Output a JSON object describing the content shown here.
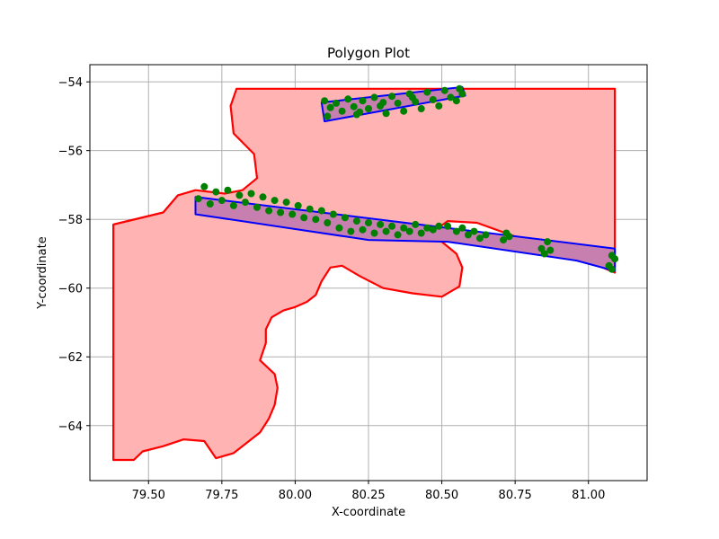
{
  "chart_data": {
    "type": "scatter",
    "title": "Polygon Plot",
    "xlabel": "X-coordinate",
    "ylabel": "Y-coordinate",
    "xlim": [
      79.3,
      81.2
    ],
    "ylim": [
      -65.6,
      -53.5
    ],
    "x_ticks": [
      79.5,
      79.75,
      80.0,
      80.25,
      80.5,
      80.75,
      81.0
    ],
    "x_tick_labels": [
      "79.50",
      "79.75",
      "80.00",
      "80.25",
      "80.50",
      "80.75",
      "81.00"
    ],
    "y_ticks": [
      -64,
      -62,
      -60,
      -58,
      -56,
      -54
    ],
    "y_tick_labels": [
      "−64",
      "−62",
      "−60",
      "−58",
      "−56",
      "−54"
    ],
    "grid": true,
    "colors": {
      "outer_edge": "#ff0000",
      "outer_fill": "#ffb3b3",
      "inner_edge": "#0000ff",
      "inner_fill": "#c77fb0",
      "points": "#008000"
    },
    "outer_polygon": [
      [
        79.8,
        -54.2
      ],
      [
        81.09,
        -54.2
      ],
      [
        81.09,
        -59.55
      ],
      [
        81.02,
        -59.3
      ],
      [
        80.9,
        -59.0
      ],
      [
        80.75,
        -58.5
      ],
      [
        80.62,
        -58.1
      ],
      [
        80.52,
        -58.05
      ],
      [
        80.48,
        -58.3
      ],
      [
        80.5,
        -58.65
      ],
      [
        80.55,
        -59.0
      ],
      [
        80.57,
        -59.4
      ],
      [
        80.56,
        -59.95
      ],
      [
        80.5,
        -60.25
      ],
      [
        80.4,
        -60.15
      ],
      [
        80.3,
        -60.0
      ],
      [
        80.22,
        -59.65
      ],
      [
        80.16,
        -59.35
      ],
      [
        80.12,
        -59.4
      ],
      [
        80.09,
        -59.8
      ],
      [
        80.07,
        -60.2
      ],
      [
        80.04,
        -60.4
      ],
      [
        80.0,
        -60.55
      ],
      [
        79.96,
        -60.65
      ],
      [
        79.92,
        -60.85
      ],
      [
        79.9,
        -61.2
      ],
      [
        79.9,
        -61.6
      ],
      [
        79.88,
        -62.1
      ],
      [
        79.93,
        -62.5
      ],
      [
        79.94,
        -62.9
      ],
      [
        79.93,
        -63.4
      ],
      [
        79.91,
        -63.8
      ],
      [
        79.88,
        -64.2
      ],
      [
        79.82,
        -64.6
      ],
      [
        79.79,
        -64.8
      ],
      [
        79.73,
        -64.95
      ],
      [
        79.69,
        -64.45
      ],
      [
        79.62,
        -64.4
      ],
      [
        79.55,
        -64.6
      ],
      [
        79.48,
        -64.75
      ],
      [
        79.45,
        -65.0
      ],
      [
        79.38,
        -65.0
      ],
      [
        79.38,
        -58.15
      ],
      [
        79.55,
        -57.8
      ],
      [
        79.6,
        -57.3
      ],
      [
        79.66,
        -57.15
      ],
      [
        79.76,
        -57.25
      ],
      [
        79.82,
        -57.15
      ],
      [
        79.87,
        -56.8
      ],
      [
        79.86,
        -56.1
      ],
      [
        79.79,
        -55.5
      ],
      [
        79.78,
        -54.7
      ]
    ],
    "inner_polygons": [
      [
        [
          80.09,
          -54.6
        ],
        [
          80.57,
          -54.15
        ],
        [
          80.58,
          -54.4
        ],
        [
          80.1,
          -55.15
        ]
      ],
      [
        [
          79.66,
          -57.35
        ],
        [
          81.09,
          -58.85
        ],
        [
          81.09,
          -59.5
        ],
        [
          80.96,
          -59.2
        ],
        [
          80.52,
          -58.65
        ],
        [
          80.25,
          -58.6
        ],
        [
          79.66,
          -57.85
        ]
      ]
    ],
    "points": [
      [
        80.1,
        -54.55
      ],
      [
        80.12,
        -54.75
      ],
      [
        80.11,
        -55.0
      ],
      [
        80.14,
        -54.62
      ],
      [
        80.16,
        -54.85
      ],
      [
        80.18,
        -54.5
      ],
      [
        80.2,
        -54.72
      ],
      [
        80.21,
        -54.95
      ],
      [
        80.23,
        -54.55
      ],
      [
        80.25,
        -54.78
      ],
      [
        80.27,
        -54.45
      ],
      [
        80.29,
        -54.7
      ],
      [
        80.31,
        -54.92
      ],
      [
        80.33,
        -54.42
      ],
      [
        80.35,
        -54.62
      ],
      [
        80.37,
        -54.85
      ],
      [
        80.39,
        -54.35
      ],
      [
        80.41,
        -54.58
      ],
      [
        80.43,
        -54.78
      ],
      [
        80.45,
        -54.3
      ],
      [
        80.47,
        -54.52
      ],
      [
        80.49,
        -54.7
      ],
      [
        80.51,
        -54.25
      ],
      [
        80.53,
        -54.45
      ],
      [
        80.55,
        -54.55
      ],
      [
        80.56,
        -54.2
      ],
      [
        80.57,
        -54.35
      ],
      [
        80.22,
        -54.88
      ],
      [
        80.3,
        -54.6
      ],
      [
        80.4,
        -54.45
      ],
      [
        79.67,
        -57.4
      ],
      [
        79.69,
        -57.05
      ],
      [
        79.71,
        -57.55
      ],
      [
        79.73,
        -57.2
      ],
      [
        79.75,
        -57.45
      ],
      [
        79.77,
        -57.15
      ],
      [
        79.79,
        -57.6
      ],
      [
        79.81,
        -57.3
      ],
      [
        79.83,
        -57.5
      ],
      [
        79.85,
        -57.25
      ],
      [
        79.87,
        -57.65
      ],
      [
        79.89,
        -57.35
      ],
      [
        79.91,
        -57.75
      ],
      [
        79.93,
        -57.45
      ],
      [
        79.95,
        -57.8
      ],
      [
        79.97,
        -57.5
      ],
      [
        79.99,
        -57.85
      ],
      [
        80.01,
        -57.6
      ],
      [
        80.03,
        -57.95
      ],
      [
        80.05,
        -57.7
      ],
      [
        80.07,
        -58.0
      ],
      [
        80.09,
        -57.75
      ],
      [
        80.11,
        -58.1
      ],
      [
        80.13,
        -57.85
      ],
      [
        80.15,
        -58.25
      ],
      [
        80.17,
        -57.95
      ],
      [
        80.19,
        -58.35
      ],
      [
        80.21,
        -58.05
      ],
      [
        80.23,
        -58.3
      ],
      [
        80.25,
        -58.1
      ],
      [
        80.27,
        -58.4
      ],
      [
        80.29,
        -58.15
      ],
      [
        80.31,
        -58.35
      ],
      [
        80.33,
        -58.2
      ],
      [
        80.35,
        -58.45
      ],
      [
        80.37,
        -58.25
      ],
      [
        80.39,
        -58.35
      ],
      [
        80.41,
        -58.15
      ],
      [
        80.43,
        -58.4
      ],
      [
        80.45,
        -58.25
      ],
      [
        80.47,
        -58.3
      ],
      [
        80.49,
        -58.2
      ],
      [
        80.52,
        -58.2
      ],
      [
        80.55,
        -58.35
      ],
      [
        80.57,
        -58.25
      ],
      [
        80.59,
        -58.45
      ],
      [
        80.61,
        -58.35
      ],
      [
        80.63,
        -58.55
      ],
      [
        80.65,
        -58.45
      ],
      [
        80.71,
        -58.6
      ],
      [
        80.72,
        -58.4
      ],
      [
        80.73,
        -58.5
      ],
      [
        80.84,
        -58.85
      ],
      [
        80.85,
        -59.0
      ],
      [
        80.86,
        -58.65
      ],
      [
        80.87,
        -58.9
      ],
      [
        81.08,
        -59.05
      ],
      [
        81.09,
        -59.15
      ],
      [
        81.07,
        -59.35
      ],
      [
        81.08,
        -59.45
      ]
    ]
  }
}
